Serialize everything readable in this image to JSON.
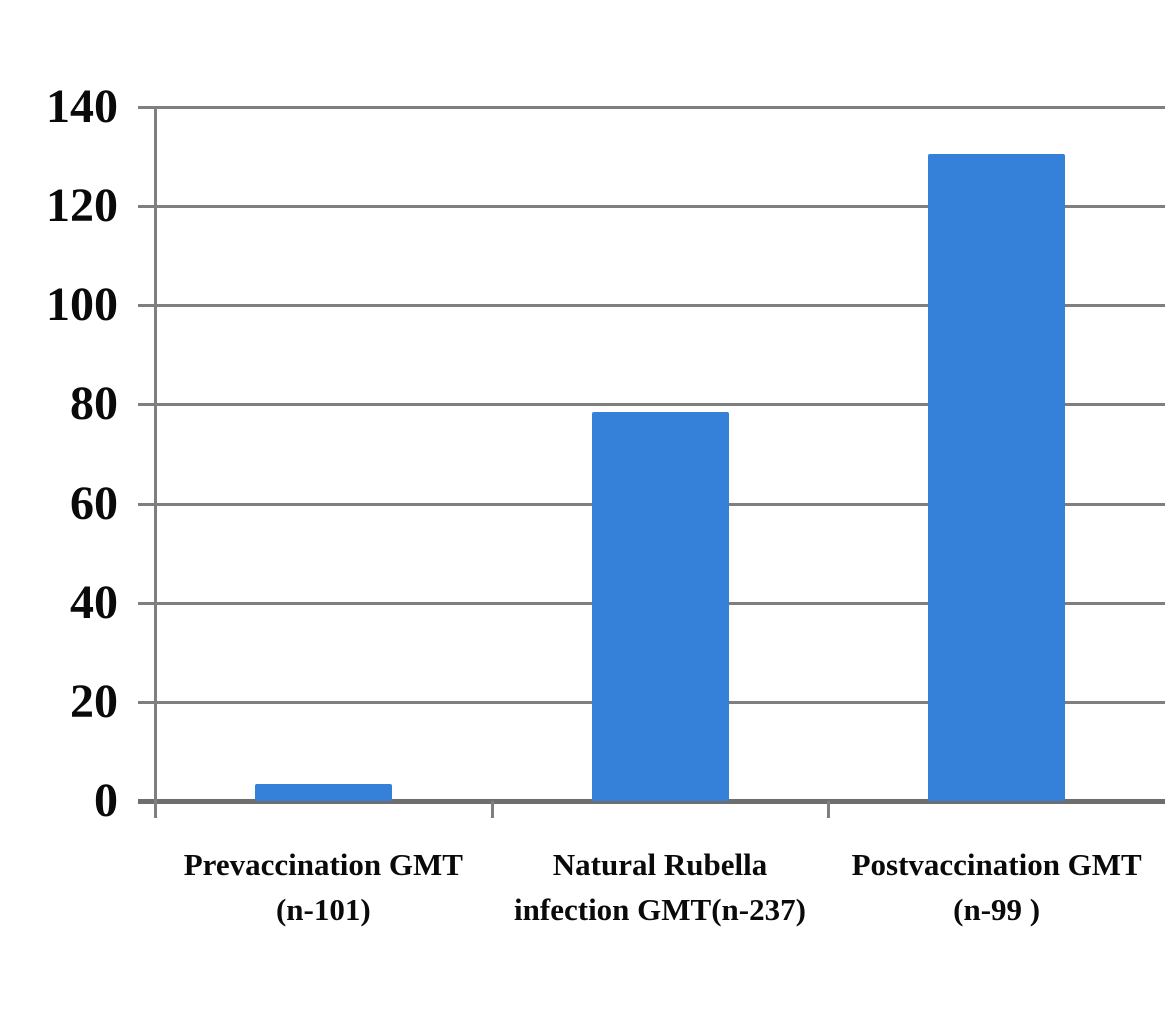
{
  "chart_data": {
    "type": "bar",
    "title": "",
    "xlabel": "",
    "ylabel": "",
    "categories": [
      {
        "lines": [
          "Prevaccination GMT",
          "(n-101)"
        ]
      },
      {
        "lines": [
          "Natural Rubella",
          "infection GMT(n-237)"
        ]
      },
      {
        "lines": [
          "Postvaccination GMT",
          "(n-99 )"
        ]
      }
    ],
    "values": [
      3.5,
      78.5,
      130.5
    ],
    "yticks": [
      0,
      20,
      40,
      60,
      80,
      100,
      120,
      140
    ],
    "ylim": [
      0,
      140
    ],
    "grid": true,
    "legend": false,
    "bar_color": "#3580d8",
    "grid_color": "#7f7f7f",
    "baseline_color": "#6e6e6e",
    "text_color": "#0a0a0a",
    "background_color": "#ffffff"
  }
}
